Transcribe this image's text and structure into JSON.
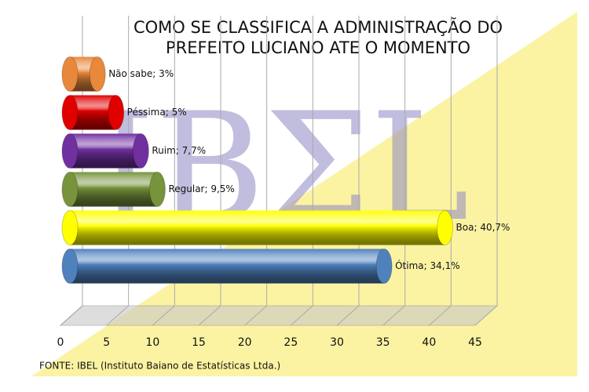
{
  "chart_data": {
    "type": "cylinder-bar",
    "title": [
      "COMO SE CLASSIFICA A ADMINISTRAÇÃO DO",
      "PREFEITO LUCIANO ATE O MOMENTO"
    ],
    "values": [
      3,
      5,
      7.7,
      9.5,
      40.7,
      34.1
    ],
    "value_labels": [
      "Não sabe; 3%",
      "Péssima; 5%",
      "Ruim; 7,7%",
      "Regular; 9,5%",
      "Boa; 40,7%",
      "Ótima; 34,1%"
    ],
    "colors": [
      "#e8883a",
      "#e00000",
      "#7030a0",
      "#77933c",
      "#ffff00",
      "#4f81bd"
    ],
    "xlim": [
      0,
      45
    ],
    "xticks": [
      0,
      5,
      10,
      15,
      20,
      25,
      30,
      35,
      40,
      45
    ],
    "grid": true,
    "watermark": "IBΣL",
    "source": "FONTE: IBEL (Instituto Baiano de Estatísticas Ltda.)"
  }
}
